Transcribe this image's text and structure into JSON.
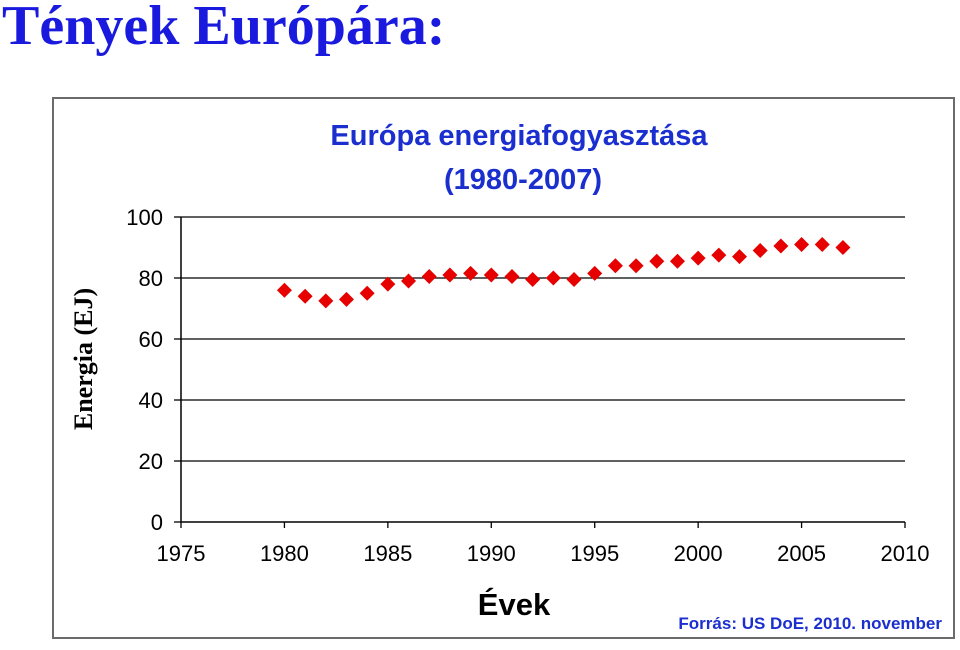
{
  "slide": {
    "title": "Tények Európára:"
  },
  "chart_data": {
    "type": "scatter",
    "title": "Európa energiafogyasztása",
    "subtitle": "(1980-2007)",
    "xlabel": "Évek",
    "ylabel": "Energia (EJ)",
    "source": "Forrás: US DoE, 2010. november",
    "xlim": [
      1975,
      2010
    ],
    "ylim": [
      0,
      100
    ],
    "x_ticks": [
      1975,
      1980,
      1985,
      1990,
      1995,
      2000,
      2005,
      2010
    ],
    "y_ticks": [
      0,
      20,
      40,
      60,
      80,
      100
    ],
    "grid": "horizontal",
    "marker": "diamond",
    "colors": {
      "marker": "#e60000",
      "title": "#1b2fcf",
      "grid": "#000000"
    },
    "series": [
      {
        "x": [
          1980,
          1981,
          1982,
          1983,
          1984,
          1985,
          1986,
          1987,
          1988,
          1989,
          1990,
          1991,
          1992,
          1993,
          1994,
          1995,
          1996,
          1997,
          1998,
          1999,
          2000,
          2001,
          2002,
          2003,
          2004,
          2005,
          2006,
          2007
        ],
        "y": [
          76,
          74,
          72.5,
          73,
          75,
          78,
          79,
          80.5,
          81,
          81.5,
          81,
          80.5,
          79.5,
          80,
          79.5,
          81.5,
          84,
          84,
          85.5,
          85.5,
          86.5,
          87.5,
          87,
          89,
          90.5,
          91,
          91,
          90
        ]
      }
    ]
  }
}
